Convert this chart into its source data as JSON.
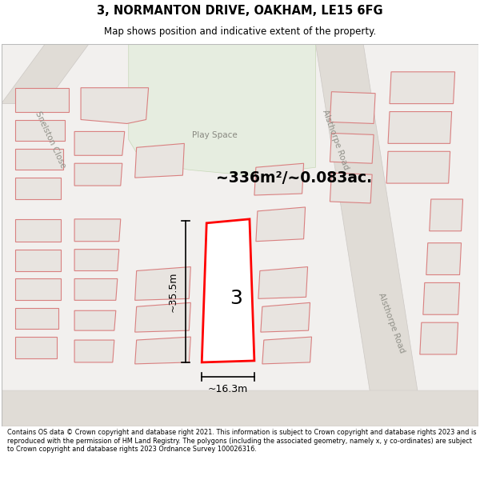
{
  "title": "3, NORMANTON DRIVE, OAKHAM, LE15 6FG",
  "subtitle": "Map shows position and indicative extent of the property.",
  "footer": "Contains OS data © Crown copyright and database right 2021. This information is subject to Crown copyright and database rights 2023 and is reproduced with the permission of HM Land Registry. The polygons (including the associated geometry, namely x, y co-ordinates) are subject to Crown copyright and database rights 2023 Ordnance Survey 100026316.",
  "area_label": "~336m²/~0.083ac.",
  "width_label": "~16.3m",
  "height_label": "~35.5m",
  "plot_number": "3",
  "map_bg": "#f2f0ee",
  "building_fill": "#e8e4e0",
  "building_stroke": "#d98080",
  "highlight_fill": "#ffffff",
  "highlight_stroke": "#ff0000",
  "green_fill": "#e6ede0",
  "road_fill": "#e0dcd6",
  "play_space_label": "Play Space",
  "road_label_alsthorpe1": "Alsthorpe Road",
  "road_label_alsthorpe2": "Alsthorpe Road",
  "road_label_snelston": "Snelston Close"
}
